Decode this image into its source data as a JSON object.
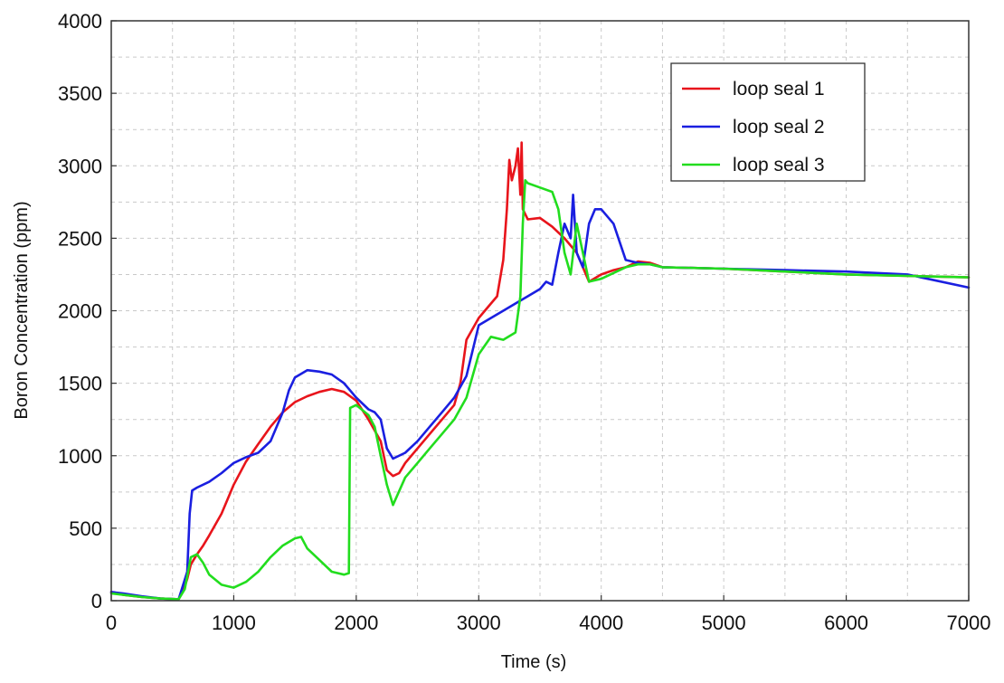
{
  "chart_data": {
    "type": "line",
    "title": "",
    "xlabel": "Time (s)",
    "ylabel": "Boron Concentration (ppm)",
    "xlim": [
      0,
      7000
    ],
    "ylim": [
      0,
      4000
    ],
    "xticks": [
      "0",
      "1000",
      "2000",
      "3000",
      "4000",
      "5000",
      "6000",
      "7000"
    ],
    "yticks": [
      "0",
      "500",
      "1000",
      "1500",
      "2000",
      "2500",
      "3000",
      "3500",
      "4000"
    ],
    "grid": true,
    "legend_position": "top-right",
    "series": [
      {
        "name": "loop seal 1",
        "color": "#e8141b",
        "x": [
          0,
          100,
          250,
          400,
          550,
          600,
          620,
          650,
          700,
          750,
          800,
          900,
          1000,
          1100,
          1200,
          1300,
          1400,
          1500,
          1600,
          1700,
          1800,
          1900,
          2000,
          2100,
          2200,
          2250,
          2300,
          2350,
          2400,
          2500,
          2600,
          2700,
          2800,
          2850,
          2900,
          3000,
          3100,
          3150,
          3200,
          3230,
          3250,
          3270,
          3300,
          3320,
          3340,
          3350,
          3360,
          3400,
          3500,
          3600,
          3700,
          3800,
          3900,
          4000,
          4100,
          4200,
          4300,
          4400,
          4500,
          5000,
          5500,
          6000,
          6500,
          7000
        ],
        "values": [
          60,
          40,
          25,
          15,
          10,
          100,
          150,
          250,
          320,
          380,
          450,
          600,
          800,
          960,
          1080,
          1200,
          1300,
          1370,
          1410,
          1440,
          1460,
          1440,
          1380,
          1250,
          1100,
          900,
          860,
          880,
          950,
          1050,
          1150,
          1250,
          1350,
          1500,
          1800,
          1950,
          2050,
          2100,
          2350,
          2700,
          3040,
          2900,
          3000,
          3120,
          2800,
          3160,
          2700,
          2630,
          2640,
          2580,
          2500,
          2400,
          2200,
          2250,
          2280,
          2300,
          2340,
          2330,
          2300,
          2290,
          2270,
          2250,
          2240,
          2230
        ]
      },
      {
        "name": "loop seal 2",
        "color": "#1a1fe0",
        "x": [
          0,
          100,
          250,
          400,
          550,
          620,
          640,
          660,
          700,
          800,
          900,
          1000,
          1100,
          1200,
          1300,
          1400,
          1450,
          1500,
          1600,
          1700,
          1800,
          1900,
          2000,
          2100,
          2150,
          2200,
          2250,
          2300,
          2400,
          2500,
          2600,
          2700,
          2800,
          2900,
          3000,
          3100,
          3200,
          3300,
          3400,
          3500,
          3550,
          3600,
          3650,
          3700,
          3750,
          3770,
          3800,
          3850,
          3900,
          3950,
          4000,
          4100,
          4200,
          4300,
          4400,
          4500,
          5000,
          5500,
          6000,
          6500,
          7000
        ],
        "values": [
          60,
          50,
          30,
          15,
          10,
          200,
          600,
          760,
          780,
          820,
          880,
          950,
          990,
          1020,
          1100,
          1300,
          1450,
          1540,
          1590,
          1580,
          1560,
          1500,
          1400,
          1320,
          1300,
          1250,
          1050,
          980,
          1020,
          1100,
          1200,
          1300,
          1400,
          1550,
          1900,
          1950,
          2000,
          2050,
          2100,
          2150,
          2200,
          2180,
          2400,
          2600,
          2500,
          2800,
          2400,
          2300,
          2600,
          2700,
          2700,
          2600,
          2350,
          2330,
          2320,
          2300,
          2290,
          2280,
          2270,
          2250,
          2160
        ]
      },
      {
        "name": "loop seal 3",
        "color": "#22dd1e",
        "x": [
          0,
          100,
          250,
          400,
          550,
          600,
          650,
          700,
          750,
          800,
          900,
          1000,
          1100,
          1200,
          1300,
          1400,
          1500,
          1550,
          1600,
          1700,
          1800,
          1900,
          1940,
          1950,
          2000,
          2100,
          2150,
          2200,
          2250,
          2300,
          2400,
          2500,
          2600,
          2700,
          2800,
          2900,
          3000,
          3100,
          3200,
          3300,
          3340,
          3360,
          3380,
          3400,
          3500,
          3600,
          3650,
          3700,
          3750,
          3800,
          3850,
          3900,
          4000,
          4100,
          4200,
          4300,
          4400,
          4500,
          5000,
          5500,
          6000,
          6500,
          7000
        ],
        "values": [
          50,
          40,
          25,
          15,
          10,
          80,
          300,
          320,
          260,
          180,
          110,
          90,
          130,
          200,
          300,
          380,
          430,
          440,
          360,
          280,
          200,
          180,
          190,
          1330,
          1350,
          1280,
          1200,
          1000,
          800,
          660,
          850,
          950,
          1050,
          1150,
          1250,
          1400,
          1700,
          1820,
          1800,
          1850,
          2100,
          2600,
          2900,
          2880,
          2850,
          2820,
          2700,
          2400,
          2250,
          2600,
          2400,
          2200,
          2220,
          2260,
          2300,
          2320,
          2320,
          2300,
          2290,
          2270,
          2250,
          2240,
          2230
        ]
      }
    ]
  }
}
